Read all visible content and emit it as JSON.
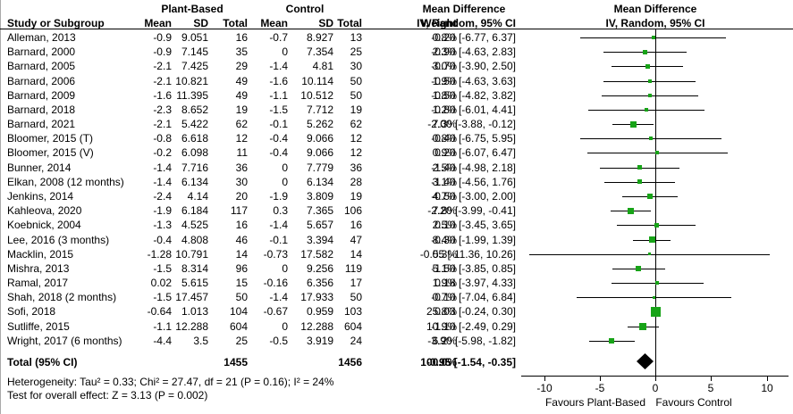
{
  "colors": {
    "marker_green": "#17a317",
    "diamond_black": "#000000",
    "line_black": "#000000"
  },
  "chart_data": {
    "type": "forest",
    "effect_measure": "Mean Difference",
    "method": "IV, Random, 95% CI",
    "columns": {
      "study": "Study or Subgroup",
      "group1": "Plant-Based",
      "group2": "Control",
      "mean": "Mean",
      "sd": "SD",
      "total": "Total",
      "weight": "Weight"
    },
    "studies": [
      {
        "label": "Alleman, 2013",
        "mean1": "-0.9",
        "sd1": "9.051",
        "n1": "16",
        "mean2": "-0.7",
        "sd2": "8.927",
        "n2": "13",
        "weight": "0.8%",
        "weight_pct": 0.8,
        "md": -0.2,
        "lo": -6.77,
        "hi": 6.37,
        "ci_text": "-0.20 [-6.77, 6.37]"
      },
      {
        "label": "Barnard, 2000",
        "mean1": "-0.9",
        "sd1": "7.145",
        "n1": "35",
        "mean2": "0",
        "sd2": "7.354",
        "n2": "25",
        "weight": "2.3%",
        "weight_pct": 2.3,
        "md": -0.9,
        "lo": -4.63,
        "hi": 2.83,
        "ci_text": "-0.90 [-4.63, 2.83]"
      },
      {
        "label": "Barnard, 2005",
        "mean1": "-2.1",
        "sd1": "7.425",
        "n1": "29",
        "mean2": "-1.4",
        "sd2": "4.81",
        "n2": "30",
        "weight": "3.0%",
        "weight_pct": 3.0,
        "md": -0.7,
        "lo": -3.9,
        "hi": 2.5,
        "ci_text": "-0.70 [-3.90, 2.50]"
      },
      {
        "label": "Barnard, 2006",
        "mean1": "-2.1",
        "sd1": "10.821",
        "n1": "49",
        "mean2": "-1.6",
        "sd2": "10.114",
        "n2": "50",
        "weight": "1.9%",
        "weight_pct": 1.9,
        "md": -0.5,
        "lo": -4.63,
        "hi": 3.63,
        "ci_text": "-0.50 [-4.63, 3.63]"
      },
      {
        "label": "Barnard, 2009",
        "mean1": "-1.6",
        "sd1": "11.395",
        "n1": "49",
        "mean2": "-1.1",
        "sd2": "10.512",
        "n2": "50",
        "weight": "1.8%",
        "weight_pct": 1.8,
        "md": -0.5,
        "lo": -4.82,
        "hi": 3.82,
        "ci_text": "-0.50 [-4.82, 3.82]"
      },
      {
        "label": "Barnard, 2018",
        "mean1": "-2.3",
        "sd1": "8.652",
        "n1": "19",
        "mean2": "-1.5",
        "sd2": "7.712",
        "n2": "19",
        "weight": "1.2%",
        "weight_pct": 1.2,
        "md": -0.8,
        "lo": -6.01,
        "hi": 4.41,
        "ci_text": "-0.80 [-6.01, 4.41]"
      },
      {
        "label": "Barnard, 2021",
        "mean1": "-2.1",
        "sd1": "5.422",
        "n1": "62",
        "mean2": "-0.1",
        "sd2": "5.262",
        "n2": "62",
        "weight": "7.3%",
        "weight_pct": 7.3,
        "md": -2.0,
        "lo": -3.88,
        "hi": -0.12,
        "ci_text": "-2.00 [-3.88, -0.12]"
      },
      {
        "label": "Bloomer, 2015 (T)",
        "mean1": "-0.8",
        "sd1": "6.618",
        "n1": "12",
        "mean2": "-0.4",
        "sd2": "9.066",
        "n2": "12",
        "weight": "0.8%",
        "weight_pct": 0.8,
        "md": -0.4,
        "lo": -6.75,
        "hi": 5.95,
        "ci_text": "-0.40 [-6.75, 5.95]"
      },
      {
        "label": "Bloomer, 2015 (V)",
        "mean1": "-0.2",
        "sd1": "6.098",
        "n1": "11",
        "mean2": "-0.4",
        "sd2": "9.066",
        "n2": "12",
        "weight": "0.9%",
        "weight_pct": 0.9,
        "md": 0.2,
        "lo": -6.07,
        "hi": 6.47,
        "ci_text": "0.20 [-6.07, 6.47]"
      },
      {
        "label": "Bunner, 2014",
        "mean1": "-1.4",
        "sd1": "7.716",
        "n1": "36",
        "mean2": "0",
        "sd2": "7.779",
        "n2": "36",
        "weight": "2.5%",
        "weight_pct": 2.5,
        "md": -1.4,
        "lo": -4.98,
        "hi": 2.18,
        "ci_text": "-1.40 [-4.98, 2.18]"
      },
      {
        "label": "Elkan, 2008 (12 months)",
        "mean1": "-1.4",
        "sd1": "6.134",
        "n1": "30",
        "mean2": "0",
        "sd2": "6.134",
        "n2": "28",
        "weight": "3.1%",
        "weight_pct": 3.1,
        "md": -1.4,
        "lo": -4.56,
        "hi": 1.76,
        "ci_text": "-1.40 [-4.56, 1.76]"
      },
      {
        "label": "Jenkins, 2014",
        "mean1": "-2.4",
        "sd1": "4.14",
        "n1": "20",
        "mean2": "-1.9",
        "sd2": "3.809",
        "n2": "19",
        "weight": "4.7%",
        "weight_pct": 4.7,
        "md": -0.5,
        "lo": -3.0,
        "hi": 2.0,
        "ci_text": "-0.50 [-3.00, 2.00]"
      },
      {
        "label": "Kahleova, 2020",
        "mean1": "-1.9",
        "sd1": "6.184",
        "n1": "117",
        "mean2": "0.3",
        "sd2": "7.365",
        "n2": "106",
        "weight": "7.8%",
        "weight_pct": 7.8,
        "md": -2.2,
        "lo": -3.99,
        "hi": -0.41,
        "ci_text": "-2.20 [-3.99, -0.41]"
      },
      {
        "label": "Koebnick, 2004",
        "mean1": "-1.3",
        "sd1": "4.525",
        "n1": "16",
        "mean2": "-1.4",
        "sd2": "5.657",
        "n2": "16",
        "weight": "2.5%",
        "weight_pct": 2.5,
        "md": 0.1,
        "lo": -3.45,
        "hi": 3.65,
        "ci_text": "0.10 [-3.45, 3.65]"
      },
      {
        "label": "Lee, 2016 (3 months)",
        "mean1": "-0.4",
        "sd1": "4.808",
        "n1": "46",
        "mean2": "-0.1",
        "sd2": "3.394",
        "n2": "47",
        "weight": "8.4%",
        "weight_pct": 8.4,
        "md": -0.3,
        "lo": -1.99,
        "hi": 1.39,
        "ci_text": "-0.30 [-1.99, 1.39]"
      },
      {
        "label": "Macklin, 2015",
        "mean1": "-1.28",
        "sd1": "10.791",
        "n1": "14",
        "mean2": "-0.73",
        "sd2": "17.582",
        "n2": "14",
        "weight": "0.3%",
        "weight_pct": 0.3,
        "md": -0.55,
        "lo": -11.36,
        "hi": 10.26,
        "ci_text": "-0.55 [-11.36, 10.26]"
      },
      {
        "label": "Mishra, 2013",
        "mean1": "-1.5",
        "sd1": "8.314",
        "n1": "96",
        "mean2": "0",
        "sd2": "9.256",
        "n2": "119",
        "weight": "5.1%",
        "weight_pct": 5.1,
        "md": -1.5,
        "lo": -3.85,
        "hi": 0.85,
        "ci_text": "-1.50 [-3.85, 0.85]"
      },
      {
        "label": "Ramal, 2017",
        "mean1": "0.02",
        "sd1": "5.615",
        "n1": "15",
        "mean2": "-0.16",
        "sd2": "6.356",
        "n2": "17",
        "weight": "1.9%",
        "weight_pct": 1.9,
        "md": 0.18,
        "lo": -3.97,
        "hi": 4.33,
        "ci_text": "0.18 [-3.97, 4.33]"
      },
      {
        "label": "Shah, 2018 (2 months)",
        "mean1": "-1.5",
        "sd1": "17.457",
        "n1": "50",
        "mean2": "-1.4",
        "sd2": "17.933",
        "n2": "50",
        "weight": "0.7%",
        "weight_pct": 0.7,
        "md": -0.1,
        "lo": -7.04,
        "hi": 6.84,
        "ci_text": "-0.10 [-7.04, 6.84]"
      },
      {
        "label": "Sofi, 2018",
        "mean1": "-0.64",
        "sd1": "1.013",
        "n1": "104",
        "mean2": "-0.67",
        "sd2": "0.959",
        "n2": "103",
        "weight": "25.8%",
        "weight_pct": 25.8,
        "md": 0.03,
        "lo": -0.24,
        "hi": 0.3,
        "ci_text": "0.03 [-0.24, 0.30]"
      },
      {
        "label": "Sutliffe, 2015",
        "mean1": "-1.1",
        "sd1": "12.288",
        "n1": "604",
        "mean2": "0",
        "sd2": "12.288",
        "n2": "604",
        "weight": "10.9%",
        "weight_pct": 10.9,
        "md": -1.1,
        "lo": -2.49,
        "hi": 0.29,
        "ci_text": "-1.10 [-2.49, 0.29]"
      },
      {
        "label": "Wright, 2017 (6 months)",
        "mean1": "-4.4",
        "sd1": "3.5",
        "n1": "25",
        "mean2": "-0.5",
        "sd2": "3.919",
        "n2": "24",
        "weight": "6.2%",
        "weight_pct": 6.2,
        "md": -3.9,
        "lo": -5.98,
        "hi": -1.82,
        "ci_text": "-3.90 [-5.98, -1.82]"
      }
    ],
    "total": {
      "label": "Total (95% CI)",
      "n1": "1455",
      "n2": "1456",
      "weight": "100.0%",
      "md": -0.95,
      "lo": -1.54,
      "hi": -0.35,
      "ci_text": "-0.95 [-1.54, -0.35]"
    },
    "heterogeneity": "Heterogeneity: Tau² = 0.33; Chi² = 27.47, df = 21 (P = 0.16); I² = 24%",
    "overall_effect": "Test for overall effect: Z = 3.13 (P = 0.002)",
    "axis": {
      "min": -10,
      "max": 10,
      "ticks": [
        -10,
        -5,
        0,
        5,
        10
      ],
      "tick_labels": [
        "-10",
        "-5",
        "0",
        "5",
        "10"
      ],
      "favours_left": "Favours Plant-Based",
      "favours_right": "Favours Control"
    }
  }
}
